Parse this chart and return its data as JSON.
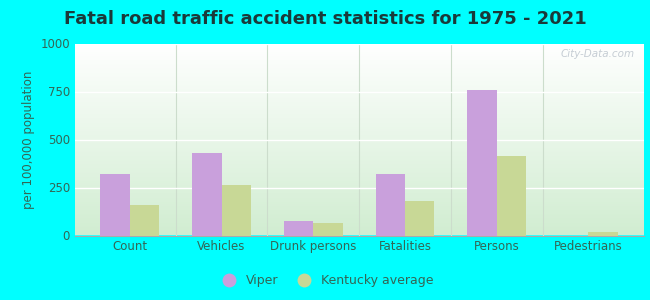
{
  "title": "Fatal road traffic accident statistics for 1975 - 2021",
  "ylabel": "per 100,000 population",
  "categories": [
    "Count",
    "Vehicles",
    "Drunk persons",
    "Fatalities",
    "Persons",
    "Pedestrians"
  ],
  "viper_values": [
    320,
    430,
    75,
    320,
    760,
    0
  ],
  "kentucky_values": [
    160,
    265,
    65,
    180,
    415,
    20
  ],
  "viper_color": "#c9a0dc",
  "kentucky_color": "#c8d896",
  "ylim": [
    0,
    1000
  ],
  "yticks": [
    0,
    250,
    500,
    750,
    1000
  ],
  "bg_top": "#ffffff",
  "bg_bottom": "#d4edda",
  "outer_background": "#00ffff",
  "bar_width": 0.32,
  "legend_labels": [
    "Viper",
    "Kentucky average"
  ],
  "watermark": "City-Data.com",
  "title_fontsize": 13,
  "axis_fontsize": 8.5,
  "legend_fontsize": 9,
  "title_color": "#1a3a3a"
}
